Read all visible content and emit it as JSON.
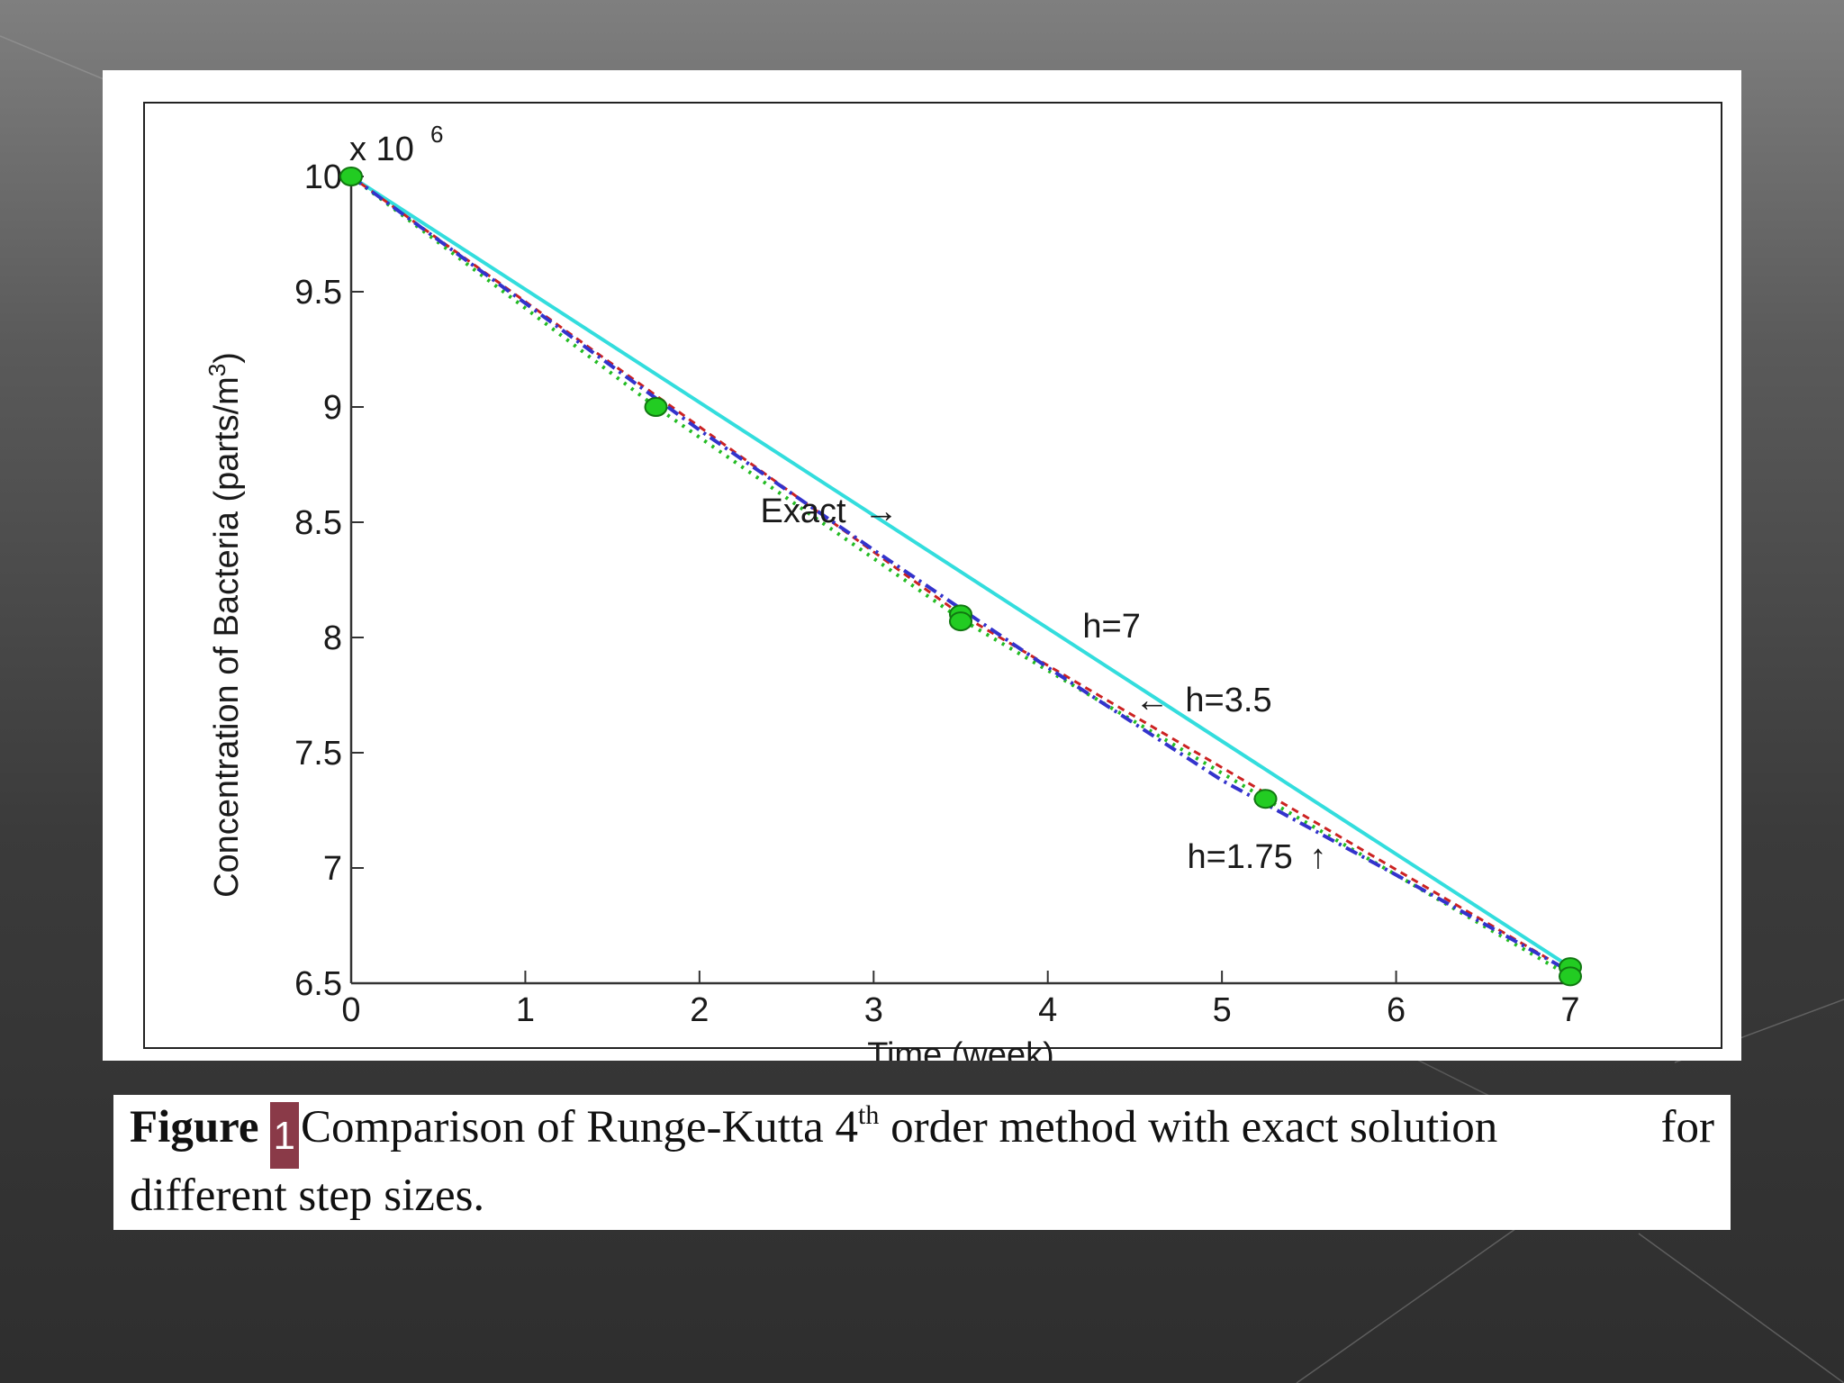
{
  "colors": {
    "exact": "#3333cc",
    "h7": "#33dddd",
    "h35": "#cc2222",
    "h175": "#22bb22",
    "marker": "#22cc22",
    "caption_badge": "#8a3a48"
  },
  "chart_data": {
    "type": "line",
    "xlabel": "Time (week)",
    "ylabel": "Concentration of Bacteria (parts/m",
    "ylabel_sup": "3",
    "ylabel_end": ")",
    "y_multiplier_text": "x 10",
    "y_multiplier_exp": "6",
    "xlim": [
      0,
      7
    ],
    "ylim": [
      6.5,
      10
    ],
    "x_ticks": [
      0,
      1,
      2,
      3,
      4,
      5,
      6,
      7
    ],
    "y_ticks": [
      6.5,
      7,
      7.5,
      8,
      8.5,
      9,
      9.5,
      10
    ],
    "y_tick_labels": [
      "6.5",
      "7",
      "7.5",
      "8",
      "8.5",
      "9",
      "9.5",
      "10"
    ],
    "grid": false,
    "series": [
      {
        "name": "Exact",
        "style": "dashdot",
        "x": [
          0,
          1,
          2,
          3,
          4,
          5,
          6,
          7
        ],
        "y": [
          10.0,
          9.45,
          8.9,
          8.38,
          7.87,
          7.38,
          6.97,
          6.55
        ]
      },
      {
        "name": "h=7",
        "style": "solid",
        "x": [
          0,
          7
        ],
        "y": [
          10.0,
          6.57
        ]
      },
      {
        "name": "h=3.5",
        "style": "dashed",
        "x": [
          0,
          3.5,
          7
        ],
        "y": [
          10.0,
          8.1,
          6.55
        ]
      },
      {
        "name": "h=1.75",
        "style": "dotted",
        "x": [
          0,
          1.75,
          3.5,
          5.25,
          7
        ],
        "y": [
          10.0,
          9.0,
          8.08,
          7.3,
          6.53
        ]
      }
    ],
    "markers": [
      {
        "x": 0,
        "y": 10.0
      },
      {
        "x": 1.75,
        "y": 9.0
      },
      {
        "x": 3.5,
        "y": 8.1
      },
      {
        "x": 3.5,
        "y": 8.07
      },
      {
        "x": 5.25,
        "y": 7.3
      },
      {
        "x": 7,
        "y": 6.57
      },
      {
        "x": 7,
        "y": 6.53
      }
    ],
    "annotations": [
      {
        "text": "Exact",
        "arrow": "→",
        "x": 2.35,
        "y": 8.5,
        "arrow_side": "right"
      },
      {
        "text": "h=7",
        "x": 4.2,
        "y": 8.0,
        "arrow": ""
      },
      {
        "text": "h=3.5",
        "x": 4.5,
        "y": 7.68,
        "arrow": "←",
        "arrow_side": "left"
      },
      {
        "text": "h=1.75",
        "x": 4.8,
        "y": 7.0,
        "arrow": "↑",
        "arrow_side": "right"
      }
    ]
  },
  "caption": {
    "prefix": "Figure",
    "number": "1",
    "text_a": "Comparison of Runge-Kutta 4",
    "sup": "th",
    "text_b": " order method with exact solution",
    "text_c": "for",
    "line2": "different step sizes."
  }
}
